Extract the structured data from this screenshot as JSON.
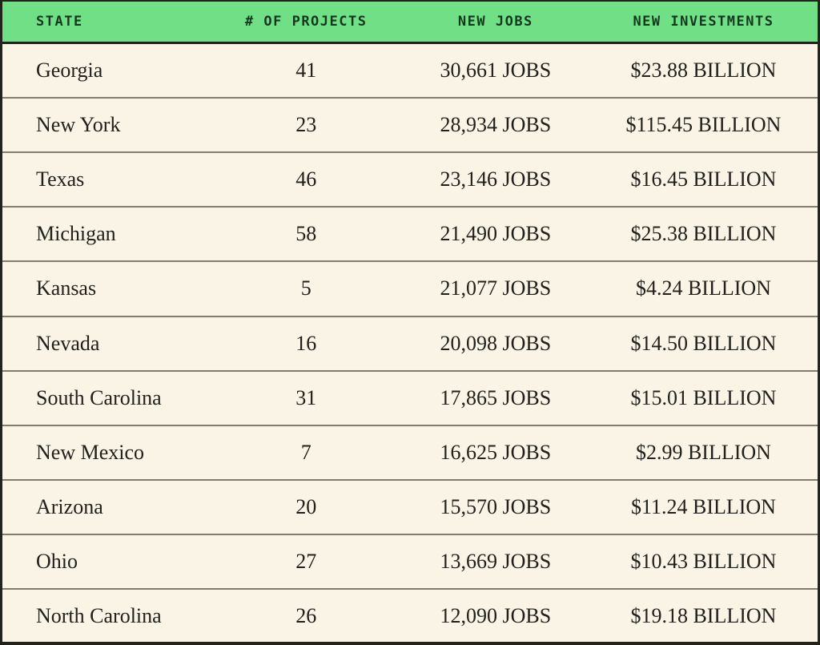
{
  "colors": {
    "header_bg": "#70df85",
    "header_text": "#14381f",
    "body_bg": "#f9f4e6",
    "body_text": "#21201b",
    "frame_border": "#23231d",
    "row_divider": "#807e71"
  },
  "chart_data": {
    "type": "table",
    "columns": [
      {
        "label": "STATE",
        "align": "left"
      },
      {
        "label": "# OF PROJECTS",
        "align": "center"
      },
      {
        "label": "NEW JOBS",
        "align": "center"
      },
      {
        "label": "NEW INVESTMENTS",
        "align": "center"
      }
    ],
    "cell_keys": [
      "state",
      "projects_label",
      "new_jobs_label",
      "new_investments_label"
    ],
    "rows": [
      {
        "state": "Georgia",
        "projects": 41,
        "projects_label": "41",
        "new_jobs": 30661,
        "new_jobs_label": "30,661 JOBS",
        "new_investments_usd_billions": 23.88,
        "new_investments_label": "$23.88 BILLION"
      },
      {
        "state": "New York",
        "projects": 23,
        "projects_label": "23",
        "new_jobs": 28934,
        "new_jobs_label": "28,934 JOBS",
        "new_investments_usd_billions": 115.45,
        "new_investments_label": "$115.45 BILLION"
      },
      {
        "state": "Texas",
        "projects": 46,
        "projects_label": "46",
        "new_jobs": 23146,
        "new_jobs_label": "23,146 JOBS",
        "new_investments_usd_billions": 16.45,
        "new_investments_label": "$16.45 BILLION"
      },
      {
        "state": "Michigan",
        "projects": 58,
        "projects_label": "58",
        "new_jobs": 21490,
        "new_jobs_label": "21,490 JOBS",
        "new_investments_usd_billions": 25.38,
        "new_investments_label": "$25.38 BILLION"
      },
      {
        "state": "Kansas",
        "projects": 5,
        "projects_label": "5",
        "new_jobs": 21077,
        "new_jobs_label": "21,077 JOBS",
        "new_investments_usd_billions": 4.24,
        "new_investments_label": "$4.24 BILLION"
      },
      {
        "state": "Nevada",
        "projects": 16,
        "projects_label": "16",
        "new_jobs": 20098,
        "new_jobs_label": "20,098 JOBS",
        "new_investments_usd_billions": 14.5,
        "new_investments_label": "$14.50 BILLION"
      },
      {
        "state": "South Carolina",
        "projects": 31,
        "projects_label": "31",
        "new_jobs": 17865,
        "new_jobs_label": "17,865 JOBS",
        "new_investments_usd_billions": 15.01,
        "new_investments_label": "$15.01 BILLION"
      },
      {
        "state": "New Mexico",
        "projects": 7,
        "projects_label": "7",
        "new_jobs": 16625,
        "new_jobs_label": "16,625 JOBS",
        "new_investments_usd_billions": 2.99,
        "new_investments_label": "$2.99 BILLION"
      },
      {
        "state": "Arizona",
        "projects": 20,
        "projects_label": "20",
        "new_jobs": 15570,
        "new_jobs_label": "15,570 JOBS",
        "new_investments_usd_billions": 11.24,
        "new_investments_label": "$11.24 BILLION"
      },
      {
        "state": "Ohio",
        "projects": 27,
        "projects_label": "27",
        "new_jobs": 13669,
        "new_jobs_label": "13,669 JOBS",
        "new_investments_usd_billions": 10.43,
        "new_investments_label": "$10.43 BILLION"
      },
      {
        "state": "North Carolina",
        "projects": 26,
        "projects_label": "26",
        "new_jobs": 12090,
        "new_jobs_label": "12,090 JOBS",
        "new_investments_usd_billions": 19.18,
        "new_investments_label": "$19.18 BILLION"
      }
    ]
  }
}
